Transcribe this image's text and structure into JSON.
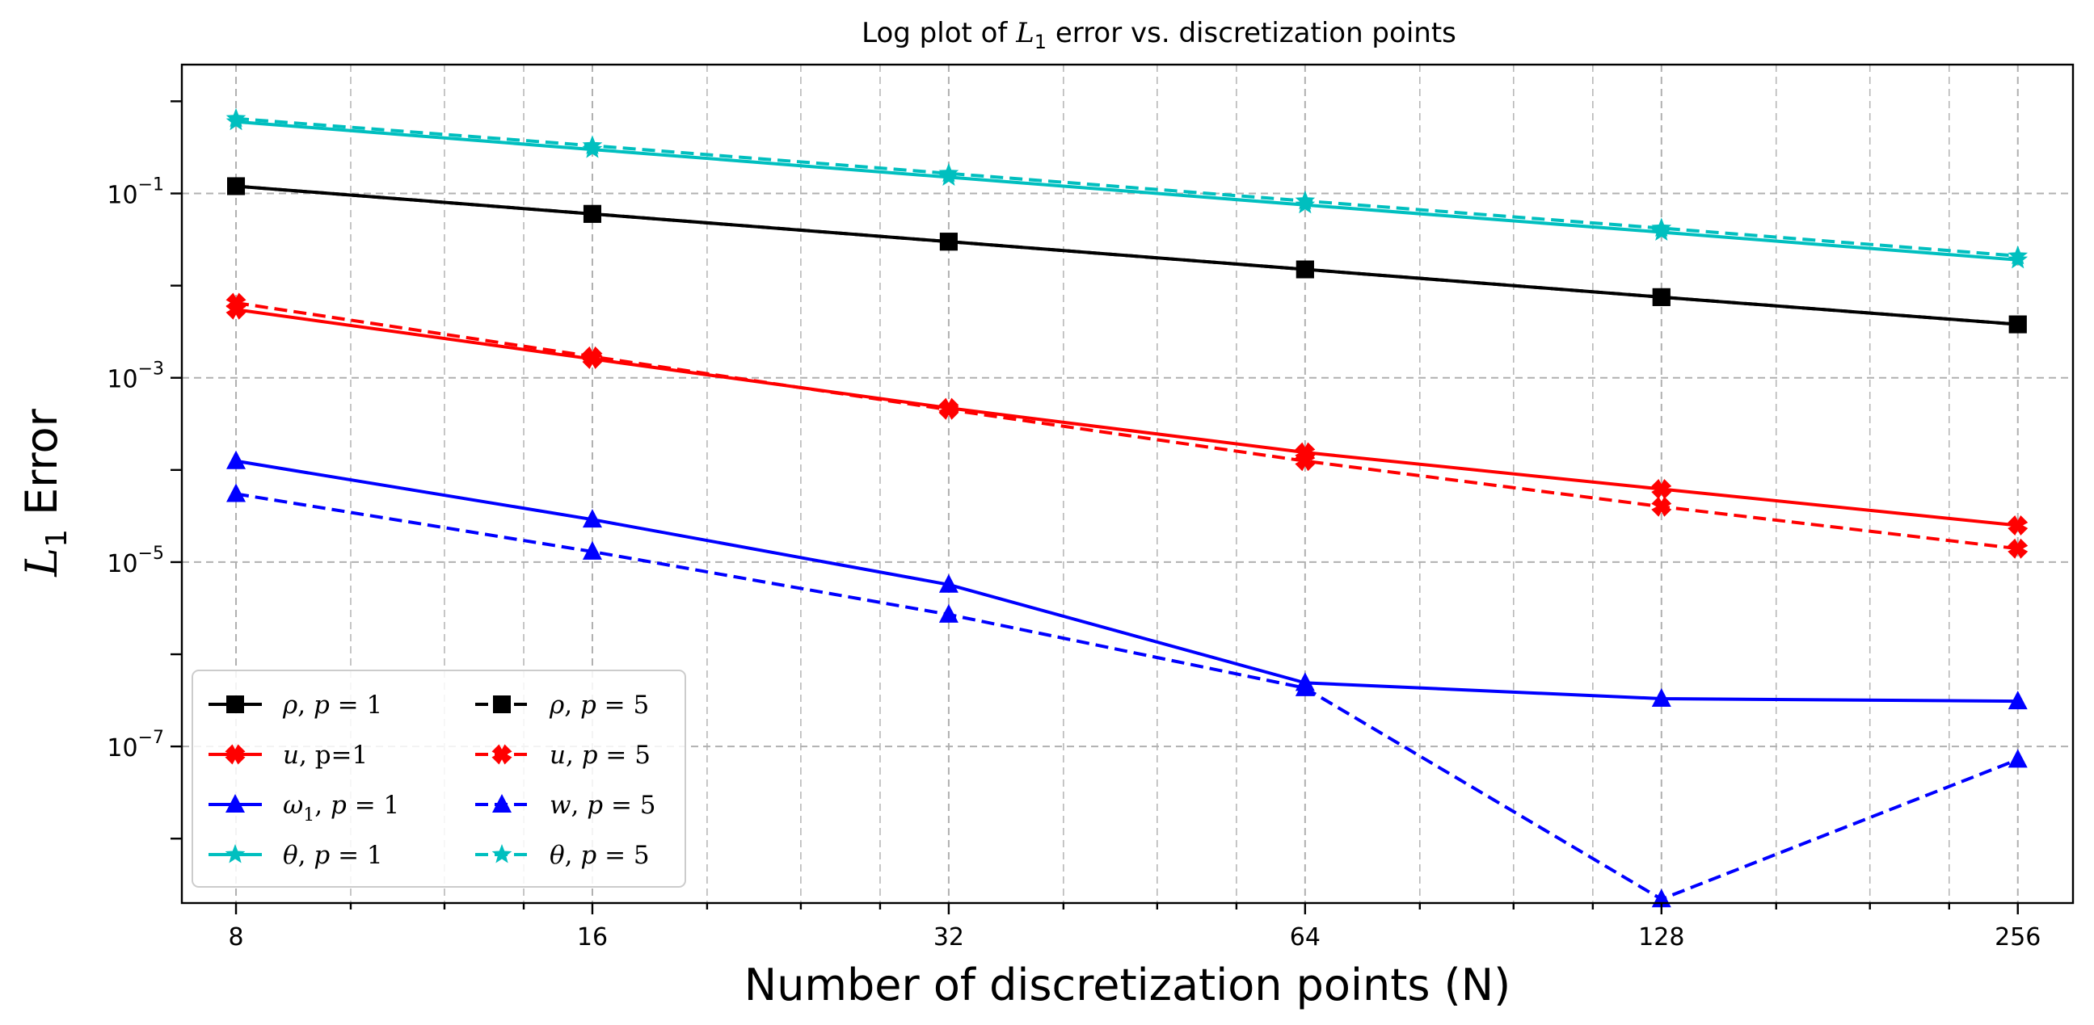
{
  "chart_data": {
    "type": "line",
    "title_prefix": "Log plot of ",
    "title_var": "L",
    "title_sub": "1",
    "title_suffix": " error vs. discretization points",
    "xlabel": "Number of discretization points (N)",
    "ylabel_var": "L",
    "ylabel_sub": "1",
    "ylabel_suffix": " Error",
    "xscale": "log2",
    "yscale": "log10",
    "xlim": [
      7.2,
      285
    ],
    "ylim": [
      2e-09,
      2.5
    ],
    "x": [
      8,
      16,
      32,
      64,
      128,
      256
    ],
    "x_ticks": [
      "8",
      "16",
      "32",
      "64",
      "128",
      "256"
    ],
    "y_ticks": [
      {
        "value": 0.1,
        "base": "10",
        "exp": "−1"
      },
      {
        "value": 0.001,
        "base": "10",
        "exp": "−3"
      },
      {
        "value": 1e-05,
        "base": "10",
        "exp": "−5"
      },
      {
        "value": 1e-07,
        "base": "10",
        "exp": "−7"
      }
    ],
    "grid": true,
    "legend_position": "lower-left",
    "series": [
      {
        "name": "ρ, p = 1",
        "color": "#000000",
        "dash": "solid",
        "marker": "square",
        "values": [
          0.12,
          0.06,
          0.03,
          0.015,
          0.0075,
          0.0038
        ]
      },
      {
        "name": "u, p=1",
        "color": "#ff0000",
        "dash": "solid",
        "marker": "x",
        "values": [
          0.0055,
          0.0016,
          0.00047,
          0.000155,
          6.2e-05,
          2.5e-05
        ]
      },
      {
        "name": "ω1, p = 1",
        "color": "#0000ff",
        "dash": "solid",
        "marker": "triangle",
        "values": [
          0.000125,
          2.9e-05,
          5.7e-06,
          4.9e-07,
          3.3e-07,
          3.1e-07
        ]
      },
      {
        "name": "θ, p = 1",
        "color": "#00bfbf",
        "dash": "solid",
        "marker": "star",
        "values": [
          0.6,
          0.3,
          0.15,
          0.075,
          0.038,
          0.019
        ]
      },
      {
        "name": "ρ, p = 5",
        "color": "#000000",
        "dash": "dashed",
        "marker": "square",
        "values": [
          0.12,
          0.06,
          0.03,
          0.015,
          0.0075,
          0.0038
        ]
      },
      {
        "name": "u, p = 5",
        "color": "#ff0000",
        "dash": "dashed",
        "marker": "x",
        "values": [
          0.0065,
          0.0017,
          0.00045,
          0.000125,
          4e-05,
          1.4e-05
        ]
      },
      {
        "name": "w, p = 5",
        "color": "#0000ff",
        "dash": "dashed",
        "marker": "triangle",
        "values": [
          5.5e-05,
          1.3e-05,
          2.7e-06,
          4.3e-07,
          2.2e-09,
          7.2e-08
        ]
      },
      {
        "name": "θ, p = 5",
        "color": "#00bfbf",
        "dash": "dashed",
        "marker": "star",
        "values": [
          0.65,
          0.33,
          0.165,
          0.083,
          0.042,
          0.021
        ]
      }
    ],
    "legend_entries": [
      {
        "series_index": 0,
        "var": "ρ",
        "sub": "",
        "sep": ", ",
        "p_var": "p",
        "rest": " = 1"
      },
      {
        "series_index": 1,
        "var": "u",
        "sub": "",
        "sep": ", ",
        "p_var": "",
        "rest": "p=1"
      },
      {
        "series_index": 2,
        "var": "ω",
        "sub": "1",
        "sep": ", ",
        "p_var": "p",
        "rest": " = 1"
      },
      {
        "series_index": 3,
        "var": "θ",
        "sub": "",
        "sep": ", ",
        "p_var": "p",
        "rest": " = 1"
      },
      {
        "series_index": 4,
        "var": "ρ",
        "sub": "",
        "sep": ", ",
        "p_var": "p",
        "rest": " = 5"
      },
      {
        "series_index": 5,
        "var": "u",
        "sub": "",
        "sep": ", ",
        "p_var": "p",
        "rest": " = 5"
      },
      {
        "series_index": 6,
        "var": "w",
        "sub": "",
        "sep": ", ",
        "p_var": "p",
        "rest": " = 5"
      },
      {
        "series_index": 7,
        "var": "θ",
        "sub": "",
        "sep": ", ",
        "p_var": "p",
        "rest": " = 5"
      }
    ]
  }
}
